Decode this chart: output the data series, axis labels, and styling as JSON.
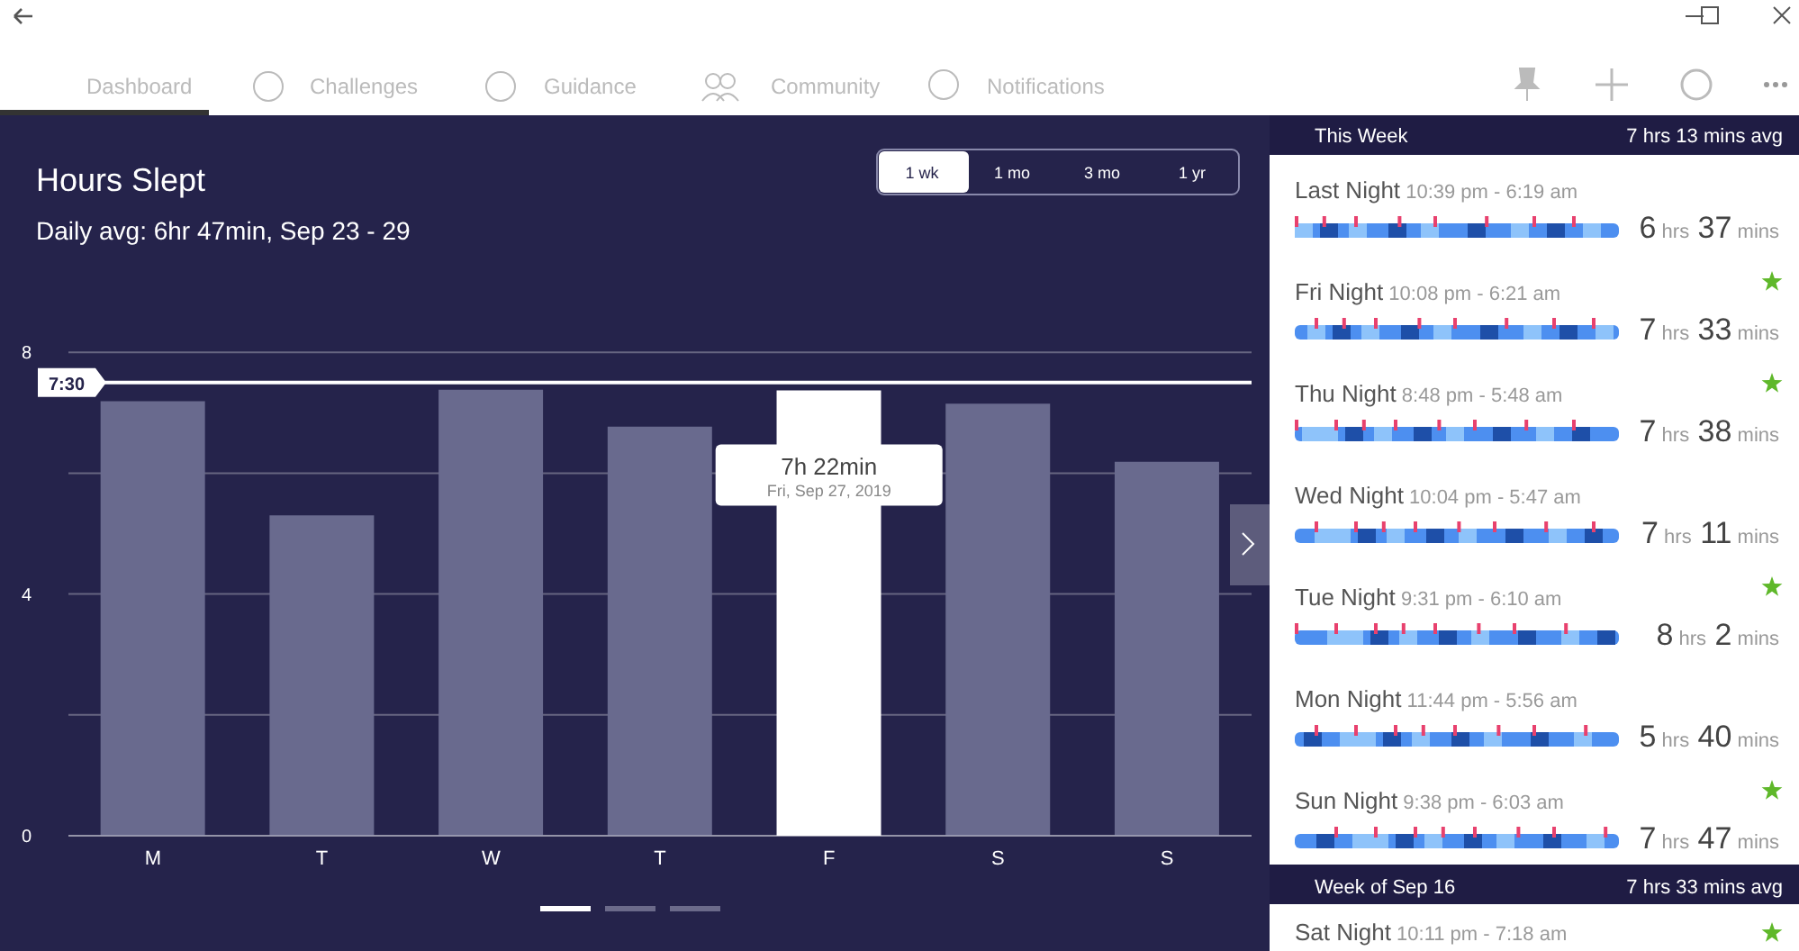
{
  "chart_data": {
    "type": "bar",
    "title": "Hours Slept",
    "subtitle": "Daily avg: 6hr 47min, Sep 23 - 29",
    "categories": [
      "M",
      "T",
      "W",
      "T",
      "F",
      "S",
      "S"
    ],
    "values": [
      7.19,
      5.3,
      7.38,
      6.77,
      7.37,
      7.15,
      6.19
    ],
    "colors": [
      "#696a8e",
      "#696a8e",
      "#696a8e",
      "#696a8e",
      "#ffffff",
      "#696a8e",
      "#696a8e"
    ],
    "ylim": [
      0,
      8
    ],
    "yticks": [
      0,
      {
        "value": 2,
        "label": null
      },
      4,
      {
        "value": 6,
        "label": null
      },
      8
    ],
    "grid": "y",
    "ref_lines": [
      {
        "axis": "y",
        "value": 7.5,
        "label": "7:30",
        "color": "#ffffff"
      }
    ],
    "annotations": [
      "Dashboard",
      "Challenges",
      "Guidance",
      "Community",
      "Notifications",
      "1 wk",
      "1 mo",
      "3 mo",
      "1 yr",
      {
        "text": "7h 22min",
        "x": "F",
        "y": 7.37
      },
      "Fri, Sep 27, 2019",
      "This Week",
      "7 hrs 13 mins avg",
      "Last Night",
      "10:39 pm - 6:19 am",
      "6 hrs 37 mins",
      "Fri Night",
      "10:08 pm - 6:21 am",
      "7 hrs 33 mins",
      "Thu Night",
      "8:48 pm - 5:48 am",
      "7 hrs 38 mins",
      "Wed Night",
      "10:04 pm - 5:47 am",
      "7 hrs 11 mins",
      "Tue Night",
      "9:31 pm - 6:10 am",
      "8 hrs 2 mins",
      "Mon Night",
      "11:44 pm - 5:56 am",
      "5 hrs 40 mins",
      "Sun Night",
      "9:38 pm - 6:03 am",
      "7 hrs 47 mins",
      "Week of Sep 16",
      "7 hrs 33 mins avg",
      "Sat Night",
      "10:11 pm - 7:18 am"
    ]
  }
}
